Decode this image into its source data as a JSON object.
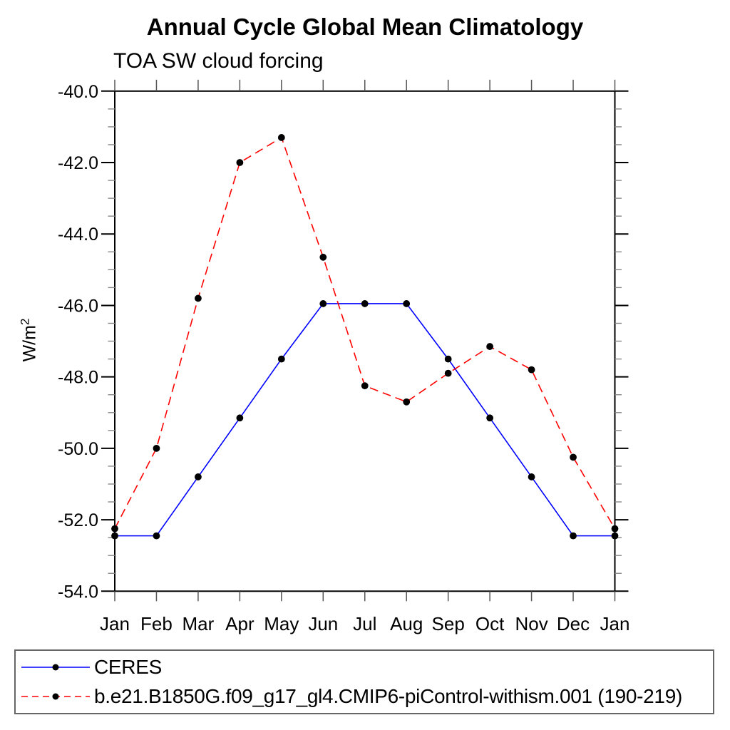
{
  "chart_data": {
    "type": "line",
    "title": "Annual Cycle Global Mean Climatology",
    "subtitle": "TOA SW cloud forcing",
    "ylabel": "W/m",
    "ylabel_superscript": "2",
    "categories": [
      "Jan",
      "Feb",
      "Mar",
      "Apr",
      "May",
      "Jun",
      "Jul",
      "Aug",
      "Sep",
      "Oct",
      "Nov",
      "Dec",
      "Jan"
    ],
    "ylim": [
      -54.0,
      -40.0
    ],
    "ytick_interval_major": 2.0,
    "ytick_interval_minor": 0.5,
    "ytick_labels": [
      "-40.0",
      "-42.0",
      "-44.0",
      "-46.0",
      "-48.0",
      "-50.0",
      "-52.0",
      "-54.0"
    ],
    "grid": false,
    "legend_position": "bottom",
    "axis_color": "#000000",
    "minor_tick_color": "#888888",
    "month_tick_color": "#555555",
    "series": [
      {
        "name": "CERES",
        "line_color": "#0000ff",
        "line_style": "solid",
        "marker_color": "#000000",
        "values": [
          -52.45,
          -52.45,
          -50.8,
          -49.15,
          -47.5,
          -45.95,
          -45.95,
          -45.95,
          -47.5,
          -49.15,
          -50.8,
          -52.45,
          -52.45
        ]
      },
      {
        "name": "b.e21.B1850G.f09_g17_gl4.CMIP6-piControl-withism.001 (190-219)",
        "line_color": "#ff0000",
        "line_style": "dashed",
        "marker_color": "#000000",
        "values": [
          -52.25,
          -50.0,
          -45.8,
          -42.0,
          -41.3,
          -44.65,
          -48.25,
          -48.7,
          -47.9,
          -47.15,
          -47.8,
          -50.25,
          -52.25
        ]
      }
    ]
  }
}
